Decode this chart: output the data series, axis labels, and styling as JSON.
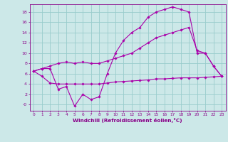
{
  "background_color": "#cce8e8",
  "line_color": "#aa00aa",
  "grid_color": "#99cccc",
  "xlabel": "Windchill (Refroidissement éolien,°C)",
  "xlabel_color": "#880088",
  "tick_color": "#880088",
  "xlim": [
    -0.5,
    23.5
  ],
  "ylim": [
    -1.2,
    19.5
  ],
  "yticks": [
    0,
    2,
    4,
    6,
    8,
    10,
    12,
    14,
    16,
    18
  ],
  "ytick_labels": [
    "-0",
    "2",
    "4",
    "6",
    "8",
    "10",
    "12",
    "14",
    "16",
    "18"
  ],
  "xticks": [
    0,
    1,
    2,
    3,
    4,
    5,
    6,
    7,
    8,
    9,
    10,
    11,
    12,
    13,
    14,
    15,
    16,
    17,
    18,
    19,
    20,
    21,
    22,
    23
  ],
  "line1_x": [
    0,
    1,
    2,
    3,
    4,
    5,
    6,
    7,
    8,
    9,
    10,
    11,
    12,
    13,
    14,
    15,
    16,
    17,
    18,
    19,
    20,
    21,
    22,
    23
  ],
  "line1_y": [
    6.5,
    7.0,
    7.0,
    3.0,
    3.5,
    -0.3,
    2.0,
    1.0,
    1.5,
    6.0,
    10.0,
    12.5,
    14.0,
    15.0,
    17.0,
    18.0,
    18.5,
    19.0,
    18.5,
    18.0,
    10.0,
    10.0,
    7.5,
    5.5
  ],
  "line2_x": [
    0,
    1,
    2,
    3,
    4,
    5,
    6,
    7,
    8,
    9,
    10,
    11,
    12,
    13,
    14,
    15,
    16,
    17,
    18,
    19,
    20,
    21,
    22,
    23
  ],
  "line2_y": [
    6.5,
    7.0,
    7.5,
    8.0,
    8.3,
    8.0,
    8.3,
    8.0,
    8.0,
    8.5,
    9.0,
    9.5,
    10.0,
    11.0,
    12.0,
    13.0,
    13.5,
    14.0,
    14.5,
    15.0,
    10.5,
    10.0,
    7.5,
    5.5
  ],
  "line3_x": [
    0,
    1,
    2,
    3,
    4,
    5,
    6,
    7,
    8,
    9,
    10,
    11,
    12,
    13,
    14,
    15,
    16,
    17,
    18,
    19,
    20,
    21,
    22,
    23
  ],
  "line3_y": [
    6.5,
    5.5,
    4.2,
    4.0,
    4.0,
    4.0,
    4.0,
    4.0,
    4.0,
    4.2,
    4.4,
    4.5,
    4.6,
    4.7,
    4.8,
    5.0,
    5.0,
    5.1,
    5.2,
    5.2,
    5.2,
    5.3,
    5.4,
    5.5
  ]
}
